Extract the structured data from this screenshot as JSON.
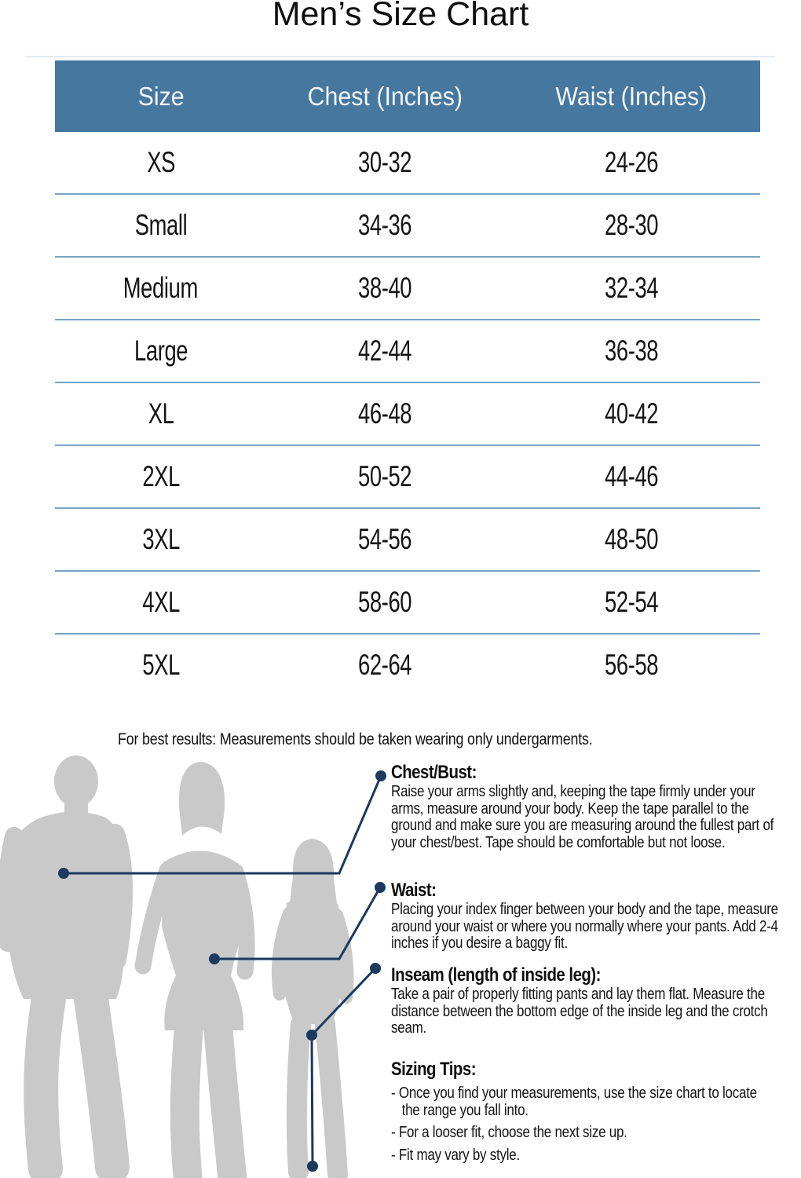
{
  "title": "Men’s Size Chart",
  "table": {
    "columns": [
      "Size",
      "Chest (Inches)",
      "Waist (Inches)"
    ],
    "rows": [
      [
        "XS",
        "30-32",
        "24-26"
      ],
      [
        "Small",
        "34-36",
        "28-30"
      ],
      [
        "Medium",
        "38-40",
        "32-34"
      ],
      [
        "Large",
        "42-44",
        "36-38"
      ],
      [
        "XL",
        "46-48",
        "40-42"
      ],
      [
        "2XL",
        "50-52",
        "44-46"
      ],
      [
        "3XL",
        "54-56",
        "48-50"
      ],
      [
        "4XL",
        "58-60",
        "52-54"
      ],
      [
        "5XL",
        "62-64",
        "56-58"
      ]
    ]
  },
  "note": "For best results: Measurements should be taken wearing only undergarments.",
  "guide": {
    "sections": [
      {
        "heading": "Chest/Bust:",
        "body": "Raise your arms slightly and, keeping the tape firmly under your arms, measure around your body. Keep the tape parallel to the ground and make sure you are measuring around the fullest part of your chest/best. Tape should be comfortable but not loose."
      },
      {
        "heading": "Waist:",
        "body": "Placing your index finger between your body and the tape, measure around your waist or where you normally where your pants. Add 2-4 inches if you desire a baggy fit."
      },
      {
        "heading": "Inseam (length of inside leg):",
        "body": "Take a pair of properly fitting pants and lay them flat. Measure the distance between the bottom edge of the inside leg and the crotch seam."
      }
    ],
    "tips": {
      "heading": "Sizing Tips:",
      "items": [
        "Once you find your measurements, use the size chart to locate the range you fall into.",
        "For a looser fit, choose the next size up.",
        "Fit may vary by style."
      ]
    }
  },
  "colors": {
    "header_bg": "#45779f",
    "header_text": "#f3f7fa",
    "separator": "#76a3c6",
    "connector": "#1c3a5e",
    "silhouette": "#c9c9c9"
  }
}
